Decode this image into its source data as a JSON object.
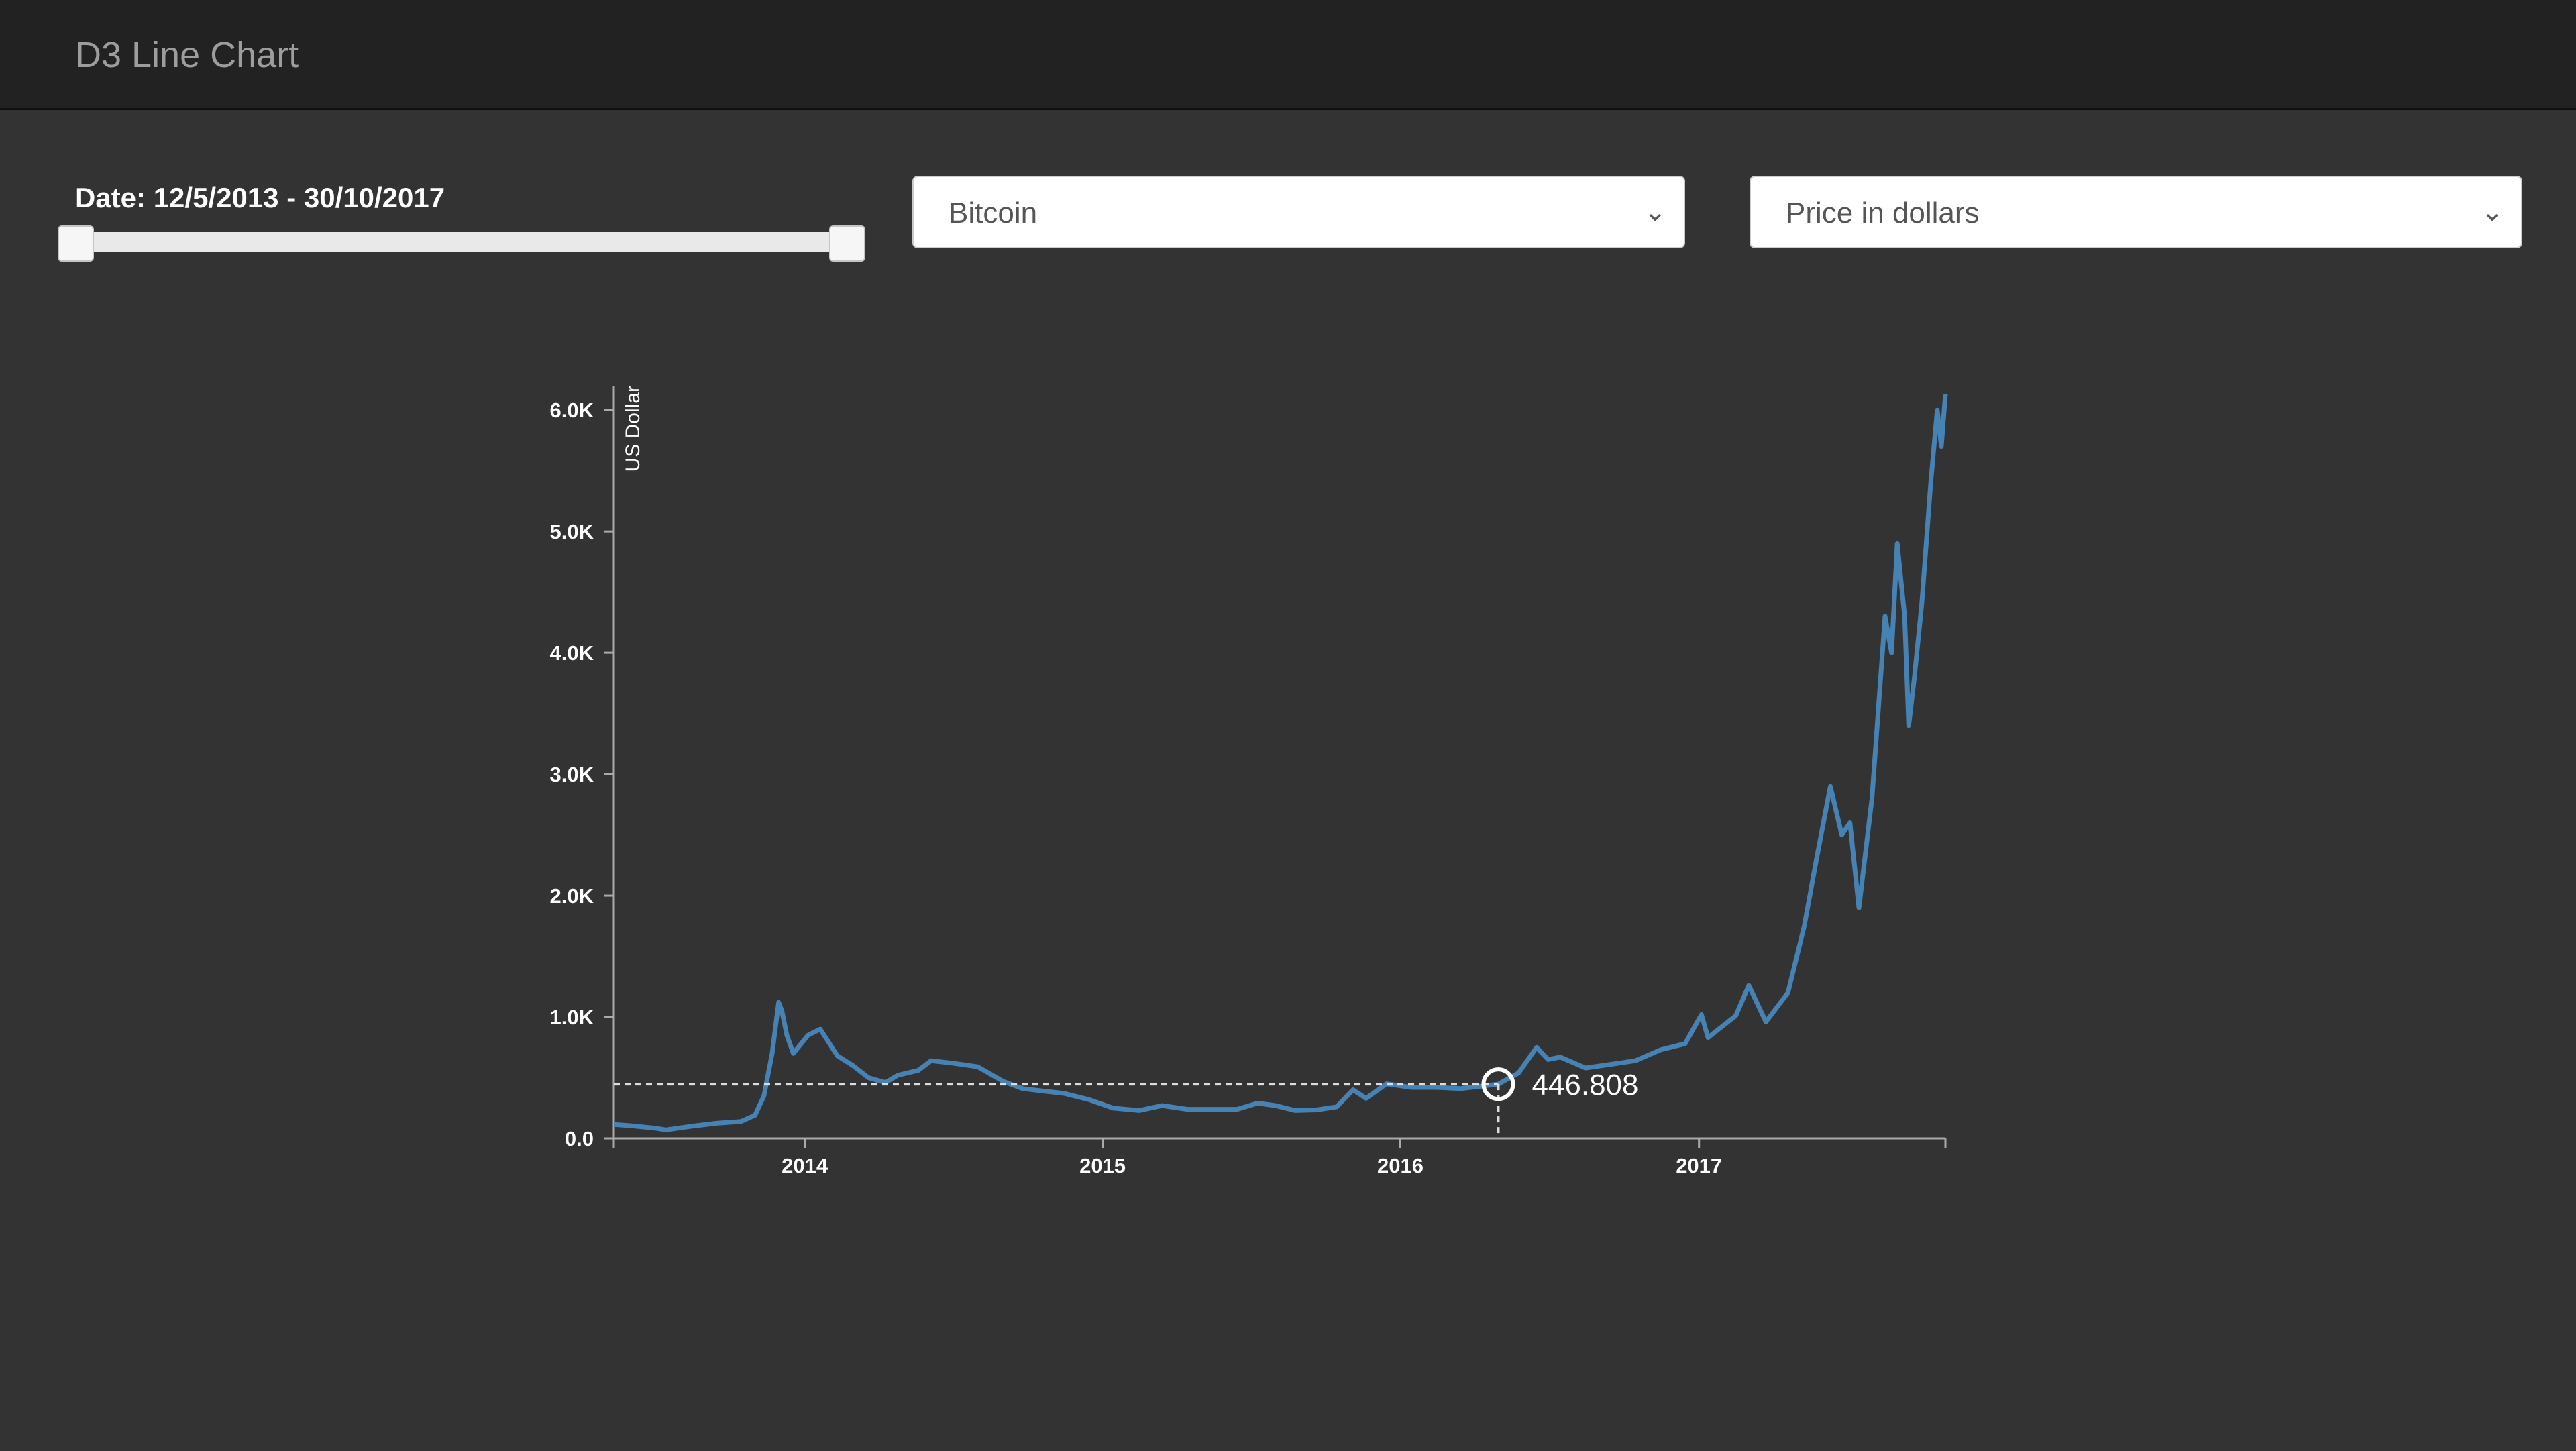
{
  "header": {
    "brand": "D3 Line Chart"
  },
  "controls": {
    "date_label": "Date: 12/5/2013 - 30/10/2017",
    "slider": {
      "start_fraction": 0.0,
      "end_fraction": 1.0
    },
    "currency_select": {
      "value": "Bitcoin"
    },
    "measure_select": {
      "value": "Price in dollars"
    }
  },
  "colors": {
    "background": "#333333",
    "navbar": "#222222",
    "line": "#4682b4",
    "axis": "#aaaaaa",
    "text": "#ffffff"
  },
  "chart_data": {
    "type": "line",
    "ylabel": "US Dollar",
    "xlabel": "",
    "x_domain": [
      "2013-05-12",
      "2017-10-30"
    ],
    "ylim": [
      0,
      6200
    ],
    "y_ticks": [
      {
        "value": 0,
        "label": "0.0"
      },
      {
        "value": 1000,
        "label": "1.0K"
      },
      {
        "value": 2000,
        "label": "2.0K"
      },
      {
        "value": 3000,
        "label": "3.0K"
      },
      {
        "value": 4000,
        "label": "4.0K"
      },
      {
        "value": 5000,
        "label": "5.0K"
      },
      {
        "value": 6000,
        "label": "6.0K"
      }
    ],
    "x_ticks": [
      {
        "value": "2014-01-01",
        "label": "2014"
      },
      {
        "value": "2015-01-01",
        "label": "2015"
      },
      {
        "value": "2016-01-01",
        "label": "2016"
      },
      {
        "value": "2017-01-01",
        "label": "2017"
      }
    ],
    "focus": {
      "date": "2016-04-30",
      "value": 446.808,
      "label": "446.808"
    },
    "series": [
      {
        "dates": [
          "2013-05-12",
          "2013-06-01",
          "2013-07-01",
          "2013-07-15",
          "2013-08-15",
          "2013-09-15",
          "2013-10-15",
          "2013-11-01",
          "2013-11-12",
          "2013-11-22",
          "2013-11-30",
          "2013-12-04",
          "2013-12-10",
          "2013-12-18",
          "2014-01-05",
          "2014-01-20",
          "2014-02-10",
          "2014-03-01",
          "2014-03-20",
          "2014-04-10",
          "2014-04-25",
          "2014-05-20",
          "2014-06-05",
          "2014-07-01",
          "2014-08-01",
          "2014-09-01",
          "2014-09-25",
          "2014-10-20",
          "2014-11-15",
          "2014-12-15",
          "2015-01-14",
          "2015-02-15",
          "2015-03-15",
          "2015-04-15",
          "2015-05-15",
          "2015-06-15",
          "2015-07-10",
          "2015-08-01",
          "2015-08-25",
          "2015-09-20",
          "2015-10-15",
          "2015-11-04",
          "2015-11-20",
          "2015-12-15",
          "2016-01-15",
          "2016-02-15",
          "2016-03-15",
          "2016-04-30",
          "2016-05-25",
          "2016-06-16",
          "2016-06-30",
          "2016-07-15",
          "2016-08-15",
          "2016-09-15",
          "2016-10-15",
          "2016-11-15",
          "2016-12-15",
          "2017-01-04",
          "2017-01-12",
          "2017-02-15",
          "2017-03-03",
          "2017-03-24",
          "2017-04-20",
          "2017-05-10",
          "2017-05-25",
          "2017-06-11",
          "2017-06-25",
          "2017-07-05",
          "2017-07-16",
          "2017-08-01",
          "2017-08-17",
          "2017-08-25",
          "2017-09-01",
          "2017-09-10",
          "2017-09-15",
          "2017-09-22",
          "2017-10-01",
          "2017-10-12",
          "2017-10-20",
          "2017-10-25",
          "2017-10-30"
        ],
        "values": [
          115,
          105,
          85,
          70,
          100,
          125,
          140,
          190,
          350,
          700,
          1120,
          1050,
          850,
          700,
          850,
          900,
          680,
          600,
          500,
          460,
          520,
          560,
          640,
          620,
          590,
          470,
          410,
          390,
          370,
          320,
          250,
          230,
          270,
          240,
          240,
          240,
          290,
          270,
          230,
          235,
          260,
          400,
          330,
          450,
          420,
          420,
          410,
          447,
          540,
          750,
          650,
          670,
          580,
          610,
          640,
          730,
          780,
          1020,
          830,
          1010,
          1260,
          960,
          1200,
          1750,
          2300,
          2900,
          2500,
          2600,
          1900,
          2800,
          4300,
          4000,
          4900,
          4300,
          3400,
          3800,
          4400,
          5400,
          6000,
          5700,
          6130
        ]
      }
    ]
  }
}
